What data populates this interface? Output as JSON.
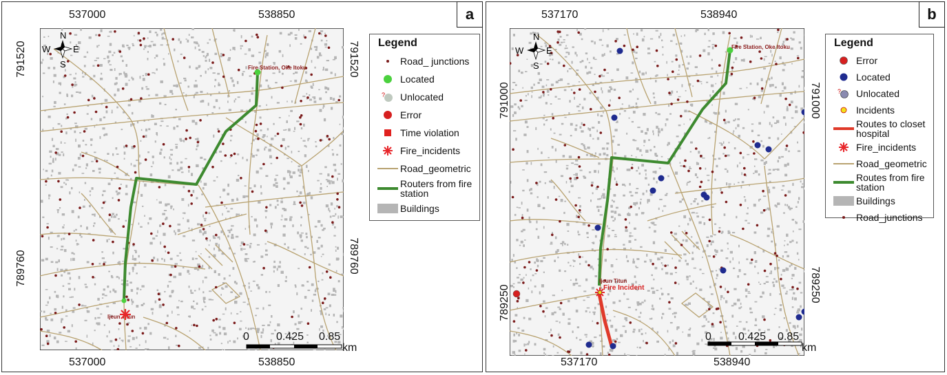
{
  "colors": {
    "road": "#b8a270",
    "route_green": "#3d8a2f",
    "route_red": "#e03a2a",
    "junction": "#7a1a1a",
    "building": "#b5b5b5",
    "located_green": "#4bd13e",
    "located_blue": "#1f2b8f",
    "error": "#d61f1f",
    "fire": "#e8262a",
    "incident": "#f2e21a"
  },
  "panel_a": {
    "letter": "a",
    "top_x_labels": [
      "537000",
      "538850"
    ],
    "bottom_x_labels": [
      "537000",
      "538850"
    ],
    "left_y_labels": [
      "791520",
      "789760"
    ],
    "right_y_labels": [
      "791520",
      "789760"
    ],
    "compass": {
      "n": "N",
      "s": "S",
      "e": "E",
      "w": "W"
    },
    "station_label": "Fire Station, Oke Itoku",
    "incident_label": "Ijeun Titun",
    "scale": {
      "labels": [
        "0",
        "0.425",
        "0.85"
      ],
      "unit": "km"
    },
    "legend": {
      "title": "Legend",
      "items": [
        {
          "label": "Road_ junctions",
          "symbol": "junction-dot"
        },
        {
          "label": "Located",
          "symbol": "green-circle"
        },
        {
          "label": "Unlocated",
          "symbol": "unlocated"
        },
        {
          "label": "Error",
          "symbol": "red-circle"
        },
        {
          "label": "Time violation",
          "symbol": "red-square"
        },
        {
          "label": "Fire_incidents",
          "symbol": "fire-star"
        },
        {
          "label": "Road_geometric",
          "symbol": "road-line"
        },
        {
          "label": "Routers from fire station",
          "symbol": "green-line"
        },
        {
          "label": "Buildings",
          "symbol": "building-box"
        }
      ]
    }
  },
  "panel_b": {
    "letter": "b",
    "top_x_labels": [
      "537170",
      "538940"
    ],
    "bottom_x_labels": [
      "537170",
      "538940"
    ],
    "left_y_labels": [
      "791000",
      "789250"
    ],
    "right_y_labels": [
      "791000",
      "789250"
    ],
    "compass": {
      "n": "N",
      "s": "S",
      "e": "E",
      "w": "W"
    },
    "station_label": "Fire Station, Oke Itoku",
    "incident_label": "Fire Incident",
    "incident_sublabel": "Ijeun Titun",
    "scale": {
      "labels": [
        "0",
        "0.425",
        "0.85"
      ],
      "unit": "km"
    },
    "legend": {
      "title": "Legend",
      "items": [
        {
          "label": "Error",
          "symbol": "red-circle"
        },
        {
          "label": "Located",
          "symbol": "blue-circle"
        },
        {
          "label": "Unlocated",
          "symbol": "unlocated-blue"
        },
        {
          "label": "Incidents",
          "symbol": "incident-yellow"
        },
        {
          "label": "Routes to closet hospital",
          "symbol": "red-line"
        },
        {
          "label": "Fire_incidents",
          "symbol": "fire-star"
        },
        {
          "label": "Road_geometric",
          "symbol": "road-line"
        },
        {
          "label": "Routes from fire station",
          "symbol": "green-line"
        },
        {
          "label": "Buildings",
          "symbol": "building-box"
        },
        {
          "label": "Road_junctions",
          "symbol": "junction-dot"
        }
      ]
    }
  }
}
